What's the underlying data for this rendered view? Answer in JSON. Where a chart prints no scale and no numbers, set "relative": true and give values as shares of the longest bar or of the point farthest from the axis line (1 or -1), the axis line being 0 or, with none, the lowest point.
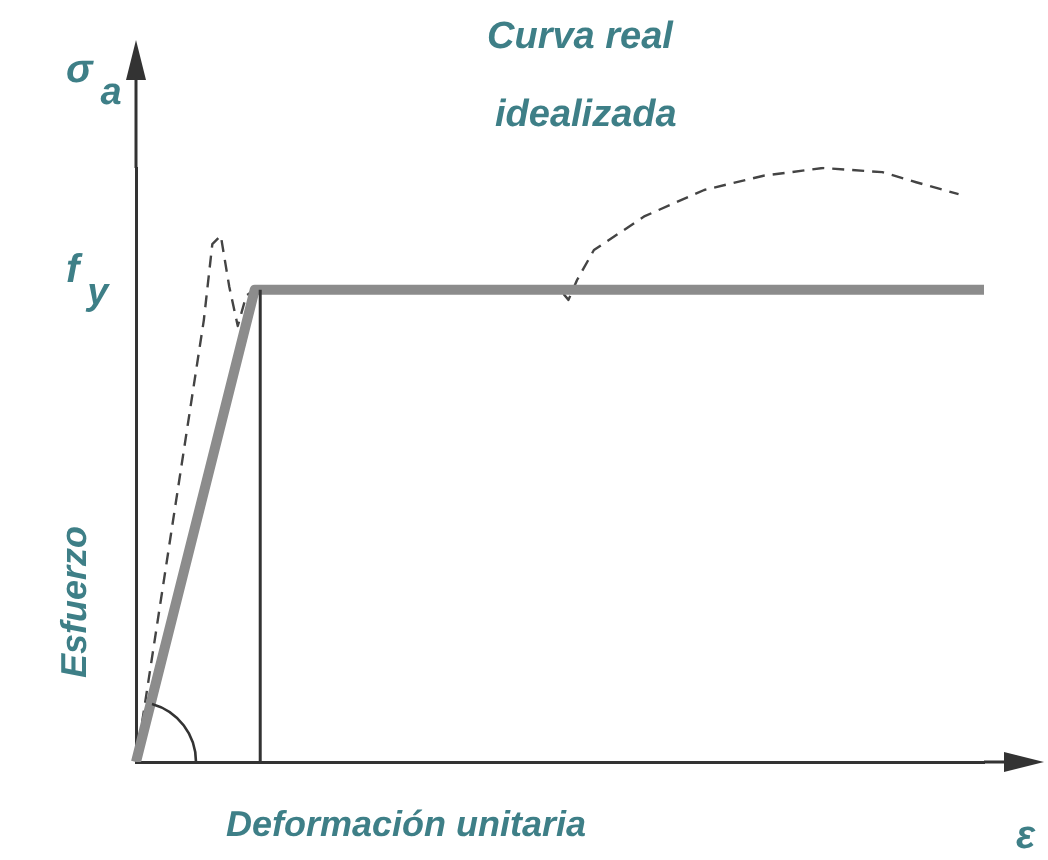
{
  "chart_data": {
    "type": "line",
    "relative": true,
    "xlabel": "Deformación unitaria",
    "ylabel": "Esfuerzo",
    "annotations": [
      "Curva real",
      "idealizada",
      "σ$_{a}$",
      "ε",
      "f$_{y}$"
    ],
    "grid": false,
    "legend": false,
    "marker": "none",
    "categories": [
      null,
      null,
      null,
      null,
      null,
      null,
      null,
      null,
      null,
      null,
      null,
      null,
      null,
      null,
      null,
      null,
      null,
      null,
      null,
      null,
      null,
      null,
      null,
      null,
      null,
      null,
      null,
      null,
      null,
      null,
      null,
      null,
      null,
      null,
      null,
      null,
      null,
      null,
      null,
      null,
      null,
      null,
      null,
      null,
      null,
      null,
      null,
      null,
      null,
      null,
      null,
      null,
      null,
      null,
      null,
      null,
      null,
      null,
      null,
      null,
      null,
      null,
      null,
      null,
      null,
      null,
      null,
      null,
      null,
      null,
      null,
      null,
      null,
      null,
      null,
      null,
      null,
      null,
      null,
      null,
      null,
      null,
      null,
      null,
      null,
      null,
      null,
      null,
      null,
      null,
      null,
      null,
      null,
      null,
      null,
      null,
      null,
      null,
      null,
      null,
      null
    ],
    "series": [
      {
        "color": "#8c8c8c",
        "line_style": "solid",
        "values": [
          0,
          null,
          null,
          null,
          null,
          null,
          null,
          null,
          null,
          null,
          null,
          null,
          null,
          null,
          0.795,
          null,
          null,
          null,
          null,
          null,
          null,
          null,
          null,
          null,
          null,
          null,
          null,
          null,
          null,
          null,
          null,
          null,
          null,
          null,
          null,
          null,
          null,
          null,
          null,
          null,
          null,
          null,
          null,
          null,
          null,
          null,
          null,
          null,
          null,
          null,
          null,
          null,
          null,
          null,
          null,
          null,
          null,
          null,
          null,
          null,
          null,
          null,
          null,
          null,
          null,
          null,
          null,
          null,
          null,
          null,
          null,
          null,
          null,
          null,
          null,
          null,
          null,
          null,
          null,
          null,
          null,
          null,
          null,
          null,
          null,
          null,
          null,
          null,
          null,
          null,
          null,
          null,
          null,
          null,
          null,
          null,
          null,
          null,
          null,
          null,
          0.795
        ]
      },
      {
        "color": "#444444",
        "line_style": "dashed",
        "values": [
          0,
          null,
          null,
          null,
          null,
          null,
          null,
          null,
          0.744,
          0.872,
          0.886,
          0.8,
          0.734,
          0.785,
          0.795,
          null,
          null,
          null,
          null,
          null,
          null,
          null,
          null,
          null,
          null,
          null,
          null,
          null,
          null,
          null,
          null,
          null,
          null,
          null,
          null,
          null,
          null,
          null,
          null,
          null,
          null,
          null,
          null,
          null,
          null,
          null,
          null,
          null,
          null,
          null,
          0.795,
          0.778,
          0.811,
          null,
          0.862,
          null,
          null,
          null,
          null,
          null,
          0.919,
          null,
          null,
          null,
          null,
          null,
          null,
          0.963,
          null,
          null,
          null,
          null,
          null,
          null,
          0.987,
          null,
          null,
          null,
          null,
          null,
          null,
          1,
          null,
          null,
          null,
          null,
          null,
          null,
          0.993,
          null,
          null,
          null,
          0.976,
          null,
          null,
          null,
          null,
          0.956,
          null,
          null,
          null
        ]
      }
    ]
  }
}
